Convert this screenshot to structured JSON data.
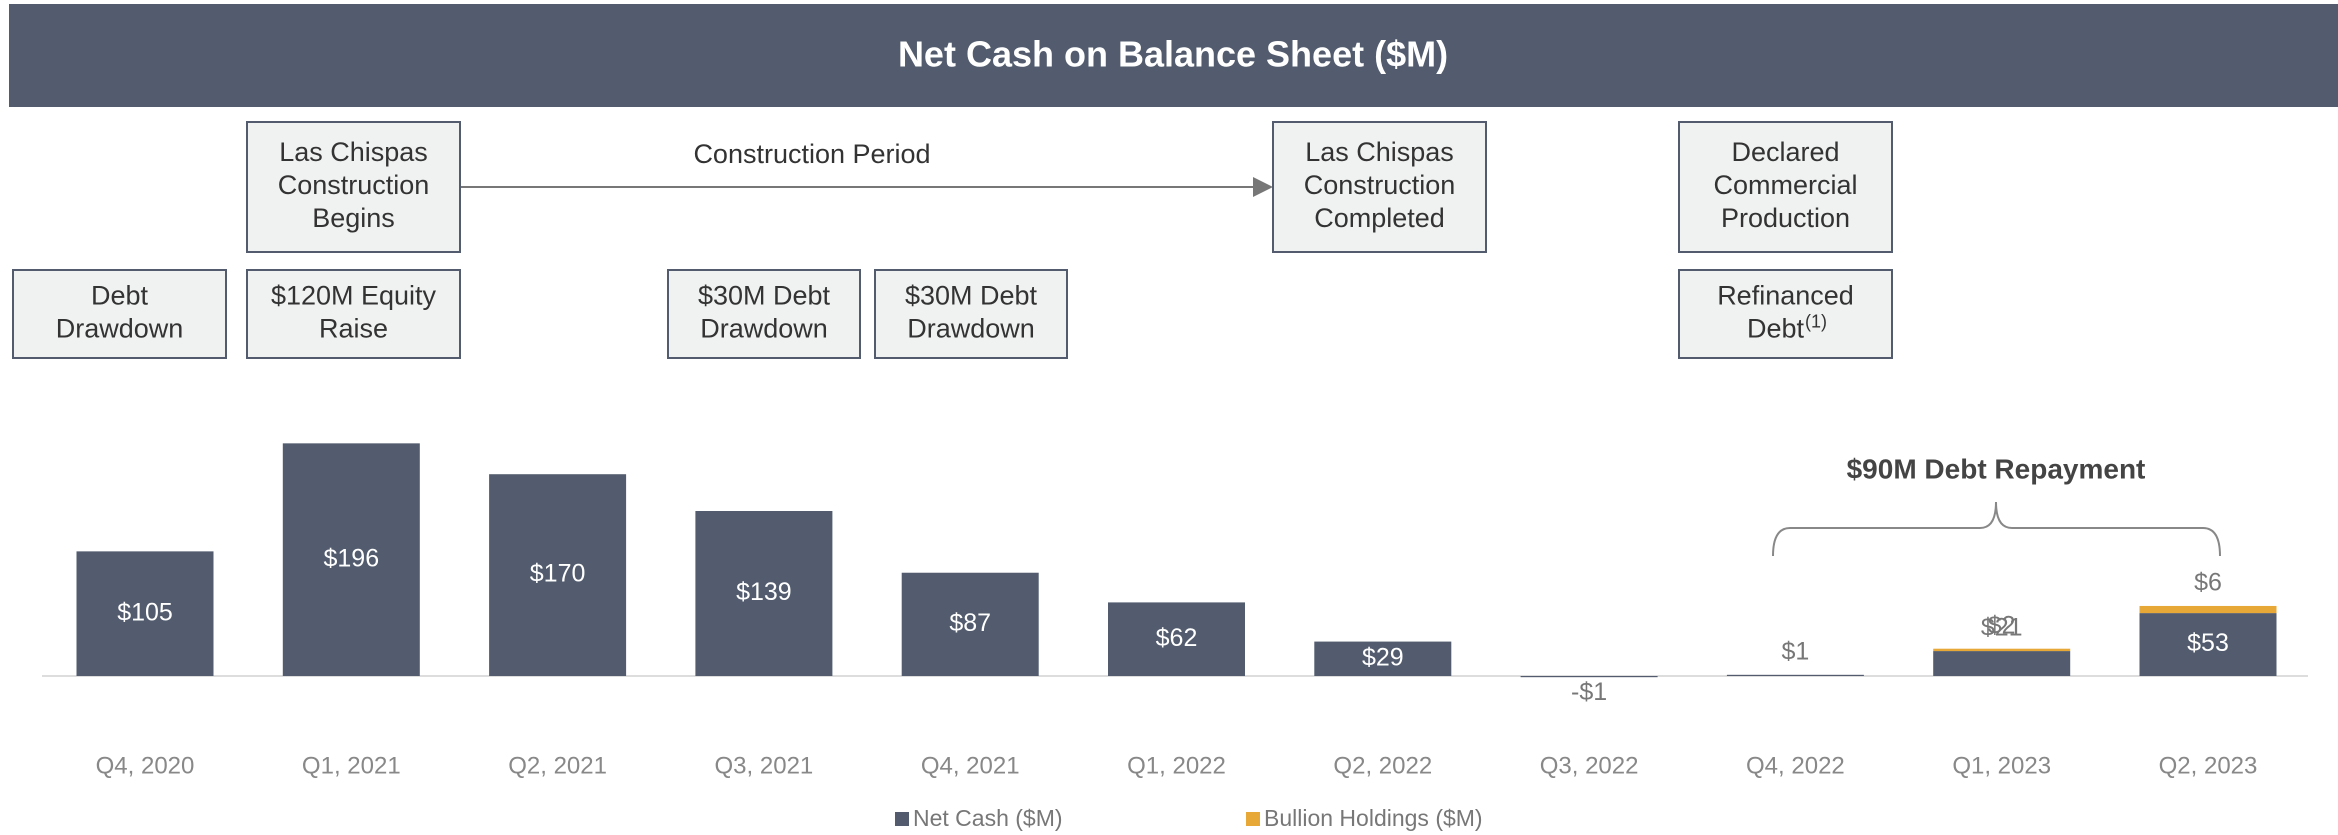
{
  "chart_data": {
    "type": "bar",
    "stacked": true,
    "title": "Net Cash on Balance Sheet ($M)",
    "categories": [
      "Q4, 2020",
      "Q1, 2021",
      "Q2, 2021",
      "Q3, 2021",
      "Q4, 2021",
      "Q1, 2022",
      "Q2, 2022",
      "Q3, 2022",
      "Q4, 2022",
      "Q1, 2023",
      "Q2, 2023"
    ],
    "series": [
      {
        "name": "Net Cash ($M)",
        "color": "#525c6e",
        "values": [
          105,
          196,
          170,
          139,
          87,
          62,
          29,
          -1,
          1,
          21,
          53
        ],
        "value_labels": [
          "$105",
          "$196",
          "$170",
          "$139",
          "$87",
          "$62",
          "$29",
          "-$1",
          "$1",
          "$21",
          "$53"
        ]
      },
      {
        "name": "Bullion Holdings ($M)",
        "color": "#e8a838",
        "values": [
          null,
          null,
          null,
          null,
          null,
          null,
          null,
          null,
          null,
          2,
          6
        ],
        "value_labels": [
          null,
          null,
          null,
          null,
          null,
          null,
          null,
          null,
          null,
          "$2",
          "$6"
        ]
      }
    ],
    "legend": "bottom",
    "annotations": {
      "boxes": [
        {
          "lines": [
            "Debt",
            "Drawdown"
          ]
        },
        {
          "lines": [
            "Las Chispas",
            "Construction",
            "Begins"
          ]
        },
        {
          "lines": [
            "$120M Equity",
            "Raise"
          ]
        },
        {
          "lines": [
            "$30M Debt",
            "Drawdown"
          ]
        },
        {
          "lines": [
            "$30M Debt",
            "Drawdown"
          ]
        },
        {
          "lines": [
            "Las Chispas",
            "Construction",
            "Completed"
          ]
        },
        {
          "lines": [
            "Declared",
            "Commercial",
            "Production"
          ]
        },
        {
          "lines": [
            "Refinanced",
            "Debt"
          ],
          "superscript": "(1)"
        }
      ],
      "arrow_label": "Construction Period",
      "brace_label": "$90M Debt Repayment"
    }
  }
}
